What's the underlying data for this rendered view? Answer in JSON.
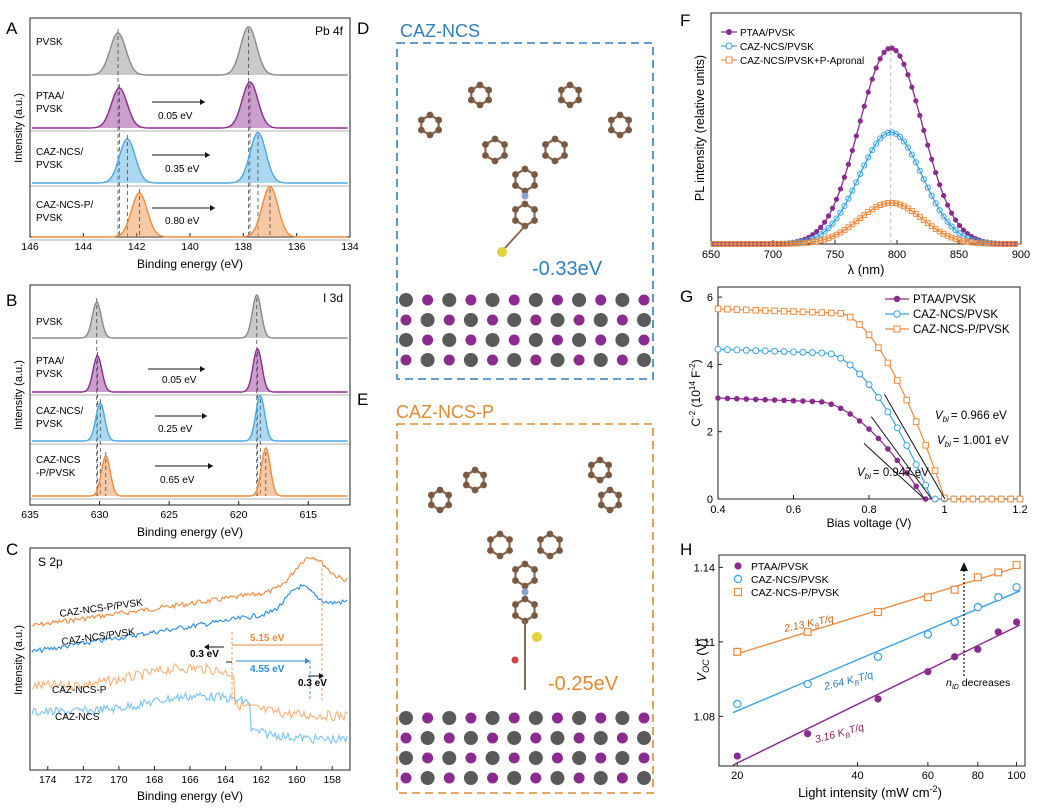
{
  "panel_letters": [
    "A",
    "B",
    "C",
    "D",
    "E",
    "F",
    "G",
    "H"
  ],
  "panelA": {
    "tag": "Pb 4f",
    "xlabel": "Binding energy (eV)",
    "ylabel": "Intensity (a.u.)",
    "xticks": [
      "146",
      "144",
      "142",
      "140",
      "138",
      "136",
      "134"
    ],
    "rows": [
      {
        "name": "PVSK",
        "label1": "PVSK",
        "label2": "",
        "shift": "",
        "color": "#8a8a8a"
      },
      {
        "name": "PTAA",
        "label1": "PTAA/",
        "label2": "PVSK",
        "shift": "0.05 eV",
        "color": "#8b2a8f"
      },
      {
        "name": "CAZ-NCS",
        "label1": "CAZ-NCS/",
        "label2": "PVSK",
        "shift": "0.35 eV",
        "color": "#4aa9e2"
      },
      {
        "name": "CAZ-NCS-P",
        "label1": "CAZ-NCS-P/",
        "label2": "PVSK",
        "shift": "0.80 eV",
        "color": "#ee8a3c"
      }
    ]
  },
  "panelB": {
    "tag": "I 3d",
    "xlabel": "Binding energy (eV)",
    "ylabel": "Intensity (a.u.)",
    "xticks": [
      "635",
      "630",
      "625",
      "620",
      "615"
    ],
    "rows": [
      {
        "name": "PVSK",
        "label1": "PVSK",
        "label2": "",
        "shift": "",
        "color": "#8a8a8a"
      },
      {
        "name": "PTAA",
        "label1": "PTAA/",
        "label2": "PVSK",
        "shift": "0.05 eV",
        "color": "#8b2a8f"
      },
      {
        "name": "CAZ-NCS",
        "label1": "CAZ-NCS/",
        "label2": "PVSK",
        "shift": "0.25 eV",
        "color": "#4aa9e2"
      },
      {
        "name": "CAZ-NCS-P",
        "label1": "CAZ-NCS",
        "label2": "-P/PVSK",
        "shift": "0.65 eV",
        "color": "#ee8a3c"
      }
    ]
  },
  "panelC": {
    "tag": "S 2p",
    "xlabel": "Binding energy (eV)",
    "ylabel": "Intensity (a.u.)",
    "xticks": [
      "174",
      "172",
      "170",
      "168",
      "166",
      "164",
      "162",
      "160",
      "158"
    ],
    "curves": [
      {
        "label": "CAZ-NCS-P/PVSK",
        "color": "#ee8a3c"
      },
      {
        "label": "CAZ-NCS/PVSK",
        "color": "#2a8ddc"
      },
      {
        "label": "CAZ-NCS-P",
        "color": "#f4b27a"
      },
      {
        "label": "CAZ-NCS",
        "color": "#7cc3ec"
      }
    ],
    "ann_orange": "5.15 eV",
    "ann_blue": "4.55 eV",
    "ann_left_shift": "0.3 eV",
    "ann_right_shift": "0.3 eV"
  },
  "panelD": {
    "title": "CAZ-NCS",
    "energy": "-0.33eV",
    "color": "#2f7fc1"
  },
  "panelE": {
    "title": "CAZ-NCS-P",
    "energy": "-0.25eV",
    "color": "#e08a2e"
  },
  "panelF": {
    "xlabel": "λ (nm)",
    "ylabel": "PL intensity (relative units)",
    "legend": [
      "PTAA/PVSK",
      "CAZ-NCS/PVSK",
      "CAZ-NCS/PVSK+P-Apronal"
    ],
    "colors": [
      "#8b2a8f",
      "#3aa3e0",
      "#ee8a3c"
    ]
  },
  "panelG": {
    "xlabel": "Bias voltage (V)",
    "ylabel_main": "C",
    "ylabel_sup1": "-2",
    "ylabel_mid": " (10",
    "ylabel_sup2": "14",
    "ylabel_end": " F",
    "ylabel_sup3": "-2",
    "ylabel_close": ")",
    "legend": [
      "PTAA/PVSK",
      "CAZ-NCS/PVSK",
      "CAZ-NCS-P/PVSK"
    ],
    "vbi_prefix": "V",
    "vbi_sub": "bi",
    "vbi": [
      "= 0.966 eV",
      "= 1.001 eV",
      "= 0.947 eV"
    ]
  },
  "panelH": {
    "xlabel_pre": "Light intensity (mW cm",
    "xlabel_sup": "-2",
    "xlabel_post": ")",
    "ylabel_main": "V",
    "ylabel_sub": "OC",
    "ylabel_unit": " (V)",
    "legend": [
      "PTAA/PVSK",
      "CAZ-NCS/PVSK",
      "CAZ-NCS-P/PVSK"
    ],
    "slopes": [
      "2.13 K",
      "2.64 K",
      "3.16 K"
    ],
    "slope_sub": "B",
    "slope_tail": "T/q",
    "nid_main": "n",
    "nid_sub": "ID",
    "nid_tail": " decreases"
  },
  "chart_data": [
    {
      "panel": "A",
      "type": "line",
      "title": "Pb 4f",
      "xlabel": "Binding energy (eV)",
      "ylabel": "Intensity (a.u.)",
      "xlim": [
        146,
        134
      ],
      "series": [
        {
          "name": "PVSK",
          "peaks": [
            142.7,
            137.8
          ]
        },
        {
          "name": "PTAA/PVSK",
          "peaks": [
            142.65,
            137.75
          ]
        },
        {
          "name": "CAZ-NCS/PVSK",
          "peaks": [
            142.35,
            137.45
          ]
        },
        {
          "name": "CAZ-NCS-P/PVSK",
          "peaks": [
            141.9,
            137.0
          ]
        }
      ]
    },
    {
      "panel": "B",
      "type": "line",
      "title": "I 3d",
      "xlabel": "Binding energy (eV)",
      "ylabel": "Intensity (a.u.)",
      "xlim": [
        635,
        612
      ],
      "series": [
        {
          "name": "PVSK",
          "peaks": [
            630.2,
            618.7
          ]
        },
        {
          "name": "PTAA/PVSK",
          "peaks": [
            630.15,
            618.65
          ]
        },
        {
          "name": "CAZ-NCS/PVSK",
          "peaks": [
            629.95,
            618.45
          ]
        },
        {
          "name": "CAZ-NCS-P/PVSK",
          "peaks": [
            629.55,
            618.05
          ]
        }
      ]
    },
    {
      "panel": "C",
      "type": "line",
      "title": "S 2p",
      "xlabel": "Binding energy (eV)",
      "ylabel": "Intensity (a.u.)",
      "xlim": [
        175,
        157
      ],
      "series": [
        {
          "name": "CAZ-NCS-P/PVSK"
        },
        {
          "name": "CAZ-NCS/PVSK"
        },
        {
          "name": "CAZ-NCS-P"
        },
        {
          "name": "CAZ-NCS"
        }
      ]
    },
    {
      "panel": "F",
      "type": "scatter",
      "xlabel": "λ (nm)",
      "ylabel": "PL intensity (relative units)",
      "xlim": [
        650,
        900
      ],
      "xticks": [
        650,
        700,
        750,
        800,
        850,
        900
      ],
      "series": [
        {
          "name": "PTAA/PVSK",
          "peak_nm": 795,
          "peak_rel": 1.0,
          "fwhm_nm": 60
        },
        {
          "name": "CAZ-NCS/PVSK",
          "peak_nm": 795,
          "peak_rel": 0.57,
          "fwhm_nm": 60
        },
        {
          "name": "CAZ-NCS/PVSK+P-Apronal",
          "peak_nm": 795,
          "peak_rel": 0.21,
          "fwhm_nm": 60
        }
      ]
    },
    {
      "panel": "G",
      "type": "scatter",
      "xlabel": "Bias voltage (V)",
      "ylabel": "C^-2 (10^14 F^-2)",
      "xlim": [
        0.4,
        1.2
      ],
      "ylim": [
        0,
        6.3
      ],
      "xticks": [
        0.4,
        0.6,
        0.8,
        1.0,
        1.2
      ],
      "yticks": [
        0,
        2,
        4,
        6
      ],
      "series": [
        {
          "name": "PTAA/PVSK",
          "plateau": 3.0,
          "vbi": 0.947
        },
        {
          "name": "CAZ-NCS/PVSK",
          "plateau": 4.45,
          "vbi": 0.966
        },
        {
          "name": "CAZ-NCS-P/PVSK",
          "plateau": 5.65,
          "vbi": 1.001
        }
      ]
    },
    {
      "panel": "H",
      "type": "scatter",
      "xlabel": "Light intensity (mW cm^-2)",
      "ylabel": "V_OC (V)",
      "xscale": "log",
      "xlim": [
        18,
        105
      ],
      "ylim": [
        1.06,
        1.145
      ],
      "xticks": [
        20,
        40,
        60,
        80,
        100
      ],
      "yticks": [
        1.08,
        1.11,
        1.14
      ],
      "series": [
        {
          "name": "PTAA/PVSK",
          "x": [
            20,
            30,
            45,
            60,
            70,
            80,
            90,
            100
          ],
          "y": [
            1.064,
            1.073,
            1.087,
            1.098,
            1.104,
            1.107,
            1.114,
            1.118
          ]
        },
        {
          "name": "CAZ-NCS/PVSK",
          "x": [
            20,
            30,
            45,
            60,
            70,
            80,
            90,
            100
          ],
          "y": [
            1.085,
            1.093,
            1.104,
            1.113,
            1.118,
            1.124,
            1.128,
            1.132
          ]
        },
        {
          "name": "CAZ-NCS-P/PVSK",
          "x": [
            20,
            30,
            45,
            60,
            70,
            80,
            90,
            100
          ],
          "y": [
            1.106,
            1.114,
            1.122,
            1.128,
            1.131,
            1.136,
            1.138,
            1.141
          ]
        }
      ],
      "slope_labels": [
        "2.13 KBT/q",
        "2.64 KBT/q",
        "3.16 KBT/q"
      ]
    }
  ]
}
